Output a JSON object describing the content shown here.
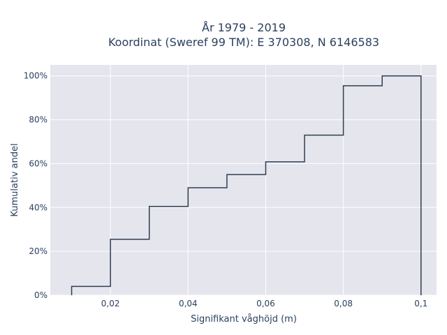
{
  "chart_data": {
    "type": "line",
    "line_shape": "step",
    "title_lines": [
      "År 1979 - 2019",
      "Koordinat (Sweref 99 TM): E 370308, N 6146583"
    ],
    "xlabel": "Signifikant våghöjd (m)",
    "ylabel": "Kumulativ andel",
    "xlim": [
      0.0045,
      0.104
    ],
    "ylim": [
      0,
      1.05
    ],
    "x_ticks": [
      0.02,
      0.04,
      0.06,
      0.08,
      0.1
    ],
    "x_tick_labels": [
      "0,02",
      "0,04",
      "0,06",
      "0,08",
      "0,1"
    ],
    "y_ticks": [
      0,
      0.2,
      0.4,
      0.6,
      0.8,
      1.0
    ],
    "y_tick_labels": [
      "0%",
      "20%",
      "40%",
      "60%",
      "80%",
      "100%"
    ],
    "grid": true,
    "series": [
      {
        "edges": [
          0.01,
          0.02,
          0.03,
          0.04,
          0.05,
          0.06,
          0.07,
          0.08,
          0.09,
          0.1
        ],
        "values": [
          0.04,
          0.255,
          0.405,
          0.49,
          0.55,
          0.608,
          0.73,
          0.955,
          1.0
        ],
        "color": "#2f3f50"
      }
    ]
  }
}
